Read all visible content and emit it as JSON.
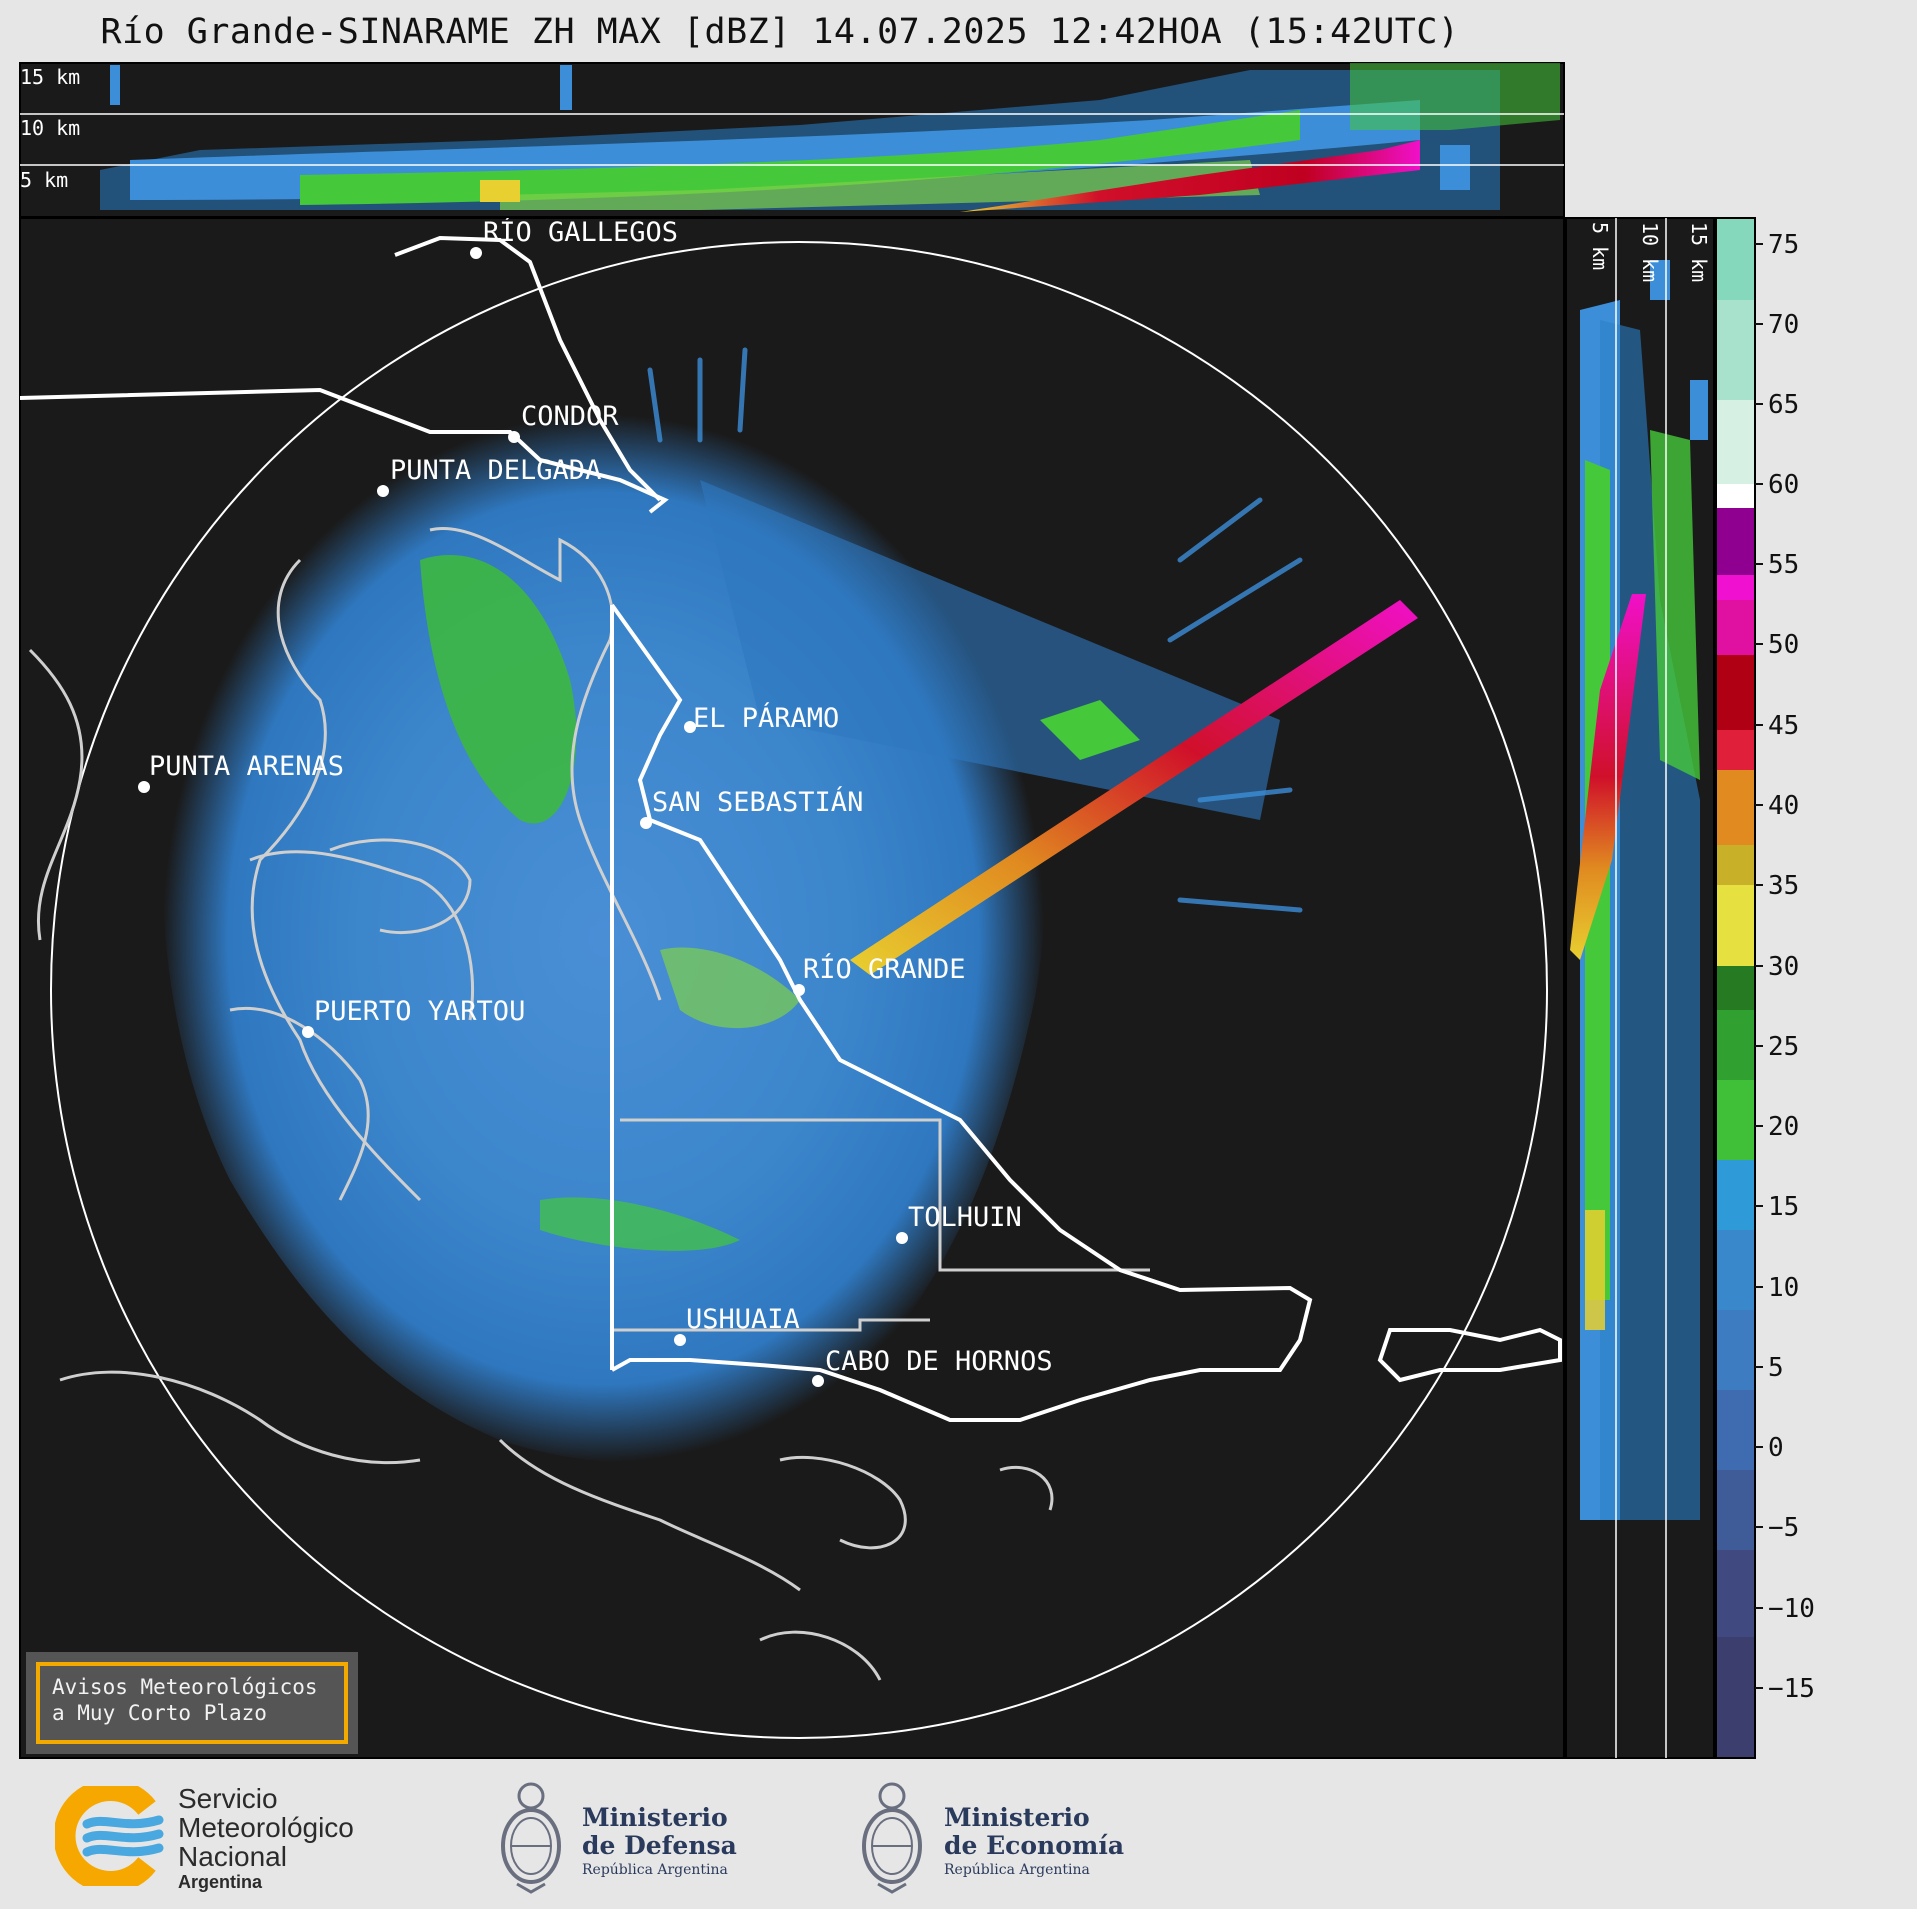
{
  "title": "Río Grande-SINARAME ZH MAX [dBZ] 14.07.2025 12:42HOA (15:42UTC)",
  "top_panel": {
    "labels": [
      "15 km",
      "10 km",
      "5 km"
    ]
  },
  "side_panel": {
    "labels": [
      "5 km",
      "10 km",
      "15 km"
    ]
  },
  "colorbar": {
    "ticks": [
      "75",
      "70",
      "65",
      "60",
      "55",
      "50",
      "45",
      "40",
      "35",
      "30",
      "25",
      "20",
      "15",
      "10",
      "5",
      "0",
      "−5",
      "−10",
      "−15"
    ]
  },
  "cities": [
    {
      "name": "RÍO GALLEGOS"
    },
    {
      "name": "CONDOR"
    },
    {
      "name": "PUNTA DELGADA"
    },
    {
      "name": "EL PÁRAMO"
    },
    {
      "name": "PUNTA ARENAS"
    },
    {
      "name": "SAN SEBASTIÁN"
    },
    {
      "name": "RÍO GRANDE"
    },
    {
      "name": "PUERTO YARTOU"
    },
    {
      "name": "TOLHUIN"
    },
    {
      "name": "USHUAIA"
    },
    {
      "name": "CABO DE HORNOS"
    }
  ],
  "warning": {
    "line1": "Avisos Meteorológicos",
    "line2": "a Muy Corto Plazo"
  },
  "footer": {
    "smn": {
      "line1": "Servicio",
      "line2": "Meteorológico",
      "line3": "Nacional",
      "line4": "Argentina"
    },
    "defensa": {
      "line1": "Ministerio",
      "line2": "de Defensa",
      "line3": "República Argentina"
    },
    "economia": {
      "line1": "Ministerio",
      "line2": "de Economía",
      "line3": "República Argentina"
    }
  }
}
